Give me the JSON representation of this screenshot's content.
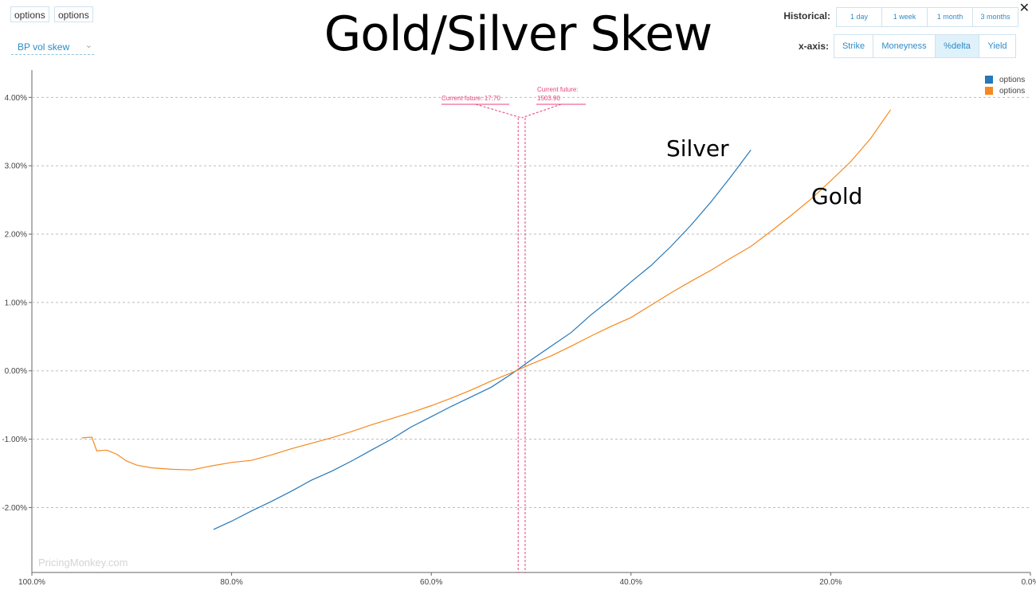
{
  "toolbar": {
    "tab1_label": "options",
    "tab2_label": "options",
    "dropdown_label": "BP vol skew"
  },
  "title": "Gold/Silver Skew",
  "historical": {
    "label": "Historical:",
    "options": [
      "1 day",
      "1 week",
      "1 month",
      "3 months"
    ]
  },
  "xaxis_selector": {
    "label": "x-axis:",
    "options": [
      "Strike",
      "Moneyness",
      "%delta",
      "Yield"
    ],
    "selected": "%delta"
  },
  "legend": [
    {
      "name": "options",
      "color": "#2678b8"
    },
    {
      "name": "options",
      "color": "#f5891f"
    }
  ],
  "annotations": {
    "silver_future": "Current future: 17.70",
    "gold_future_line1": "Current future:",
    "gold_future_line2": "1503.90",
    "silver_label": "Silver",
    "gold_label": "Gold"
  },
  "watermark": "PricingMonkey.com",
  "chart_data": {
    "type": "line",
    "x_unit": "%delta",
    "xlim": [
      100,
      0
    ],
    "ylim": [
      -2.95,
      4.4
    ],
    "xticks": [
      "100.0%",
      "80.0%",
      "60.0%",
      "40.0%",
      "20.0%",
      "0.0%"
    ],
    "xtick_values": [
      100,
      80,
      60,
      40,
      20,
      0
    ],
    "yticks": [
      "4.00%",
      "3.00%",
      "2.00%",
      "1.00%",
      "0.00%",
      "-1.00%",
      "-2.00%"
    ],
    "ytick_values": [
      4,
      3,
      2,
      1,
      0,
      -1,
      -2
    ],
    "grid": "horizontal dashed",
    "legend_position": "top-right",
    "current_future_x": [
      51.3,
      50.6
    ],
    "series": [
      {
        "color": "#2678b8",
        "label": "Silver",
        "x": [
          81.8,
          80.0,
          78.0,
          76.0,
          74.0,
          72.0,
          70.0,
          68.0,
          66.0,
          64.0,
          62.0,
          60.0,
          58.0,
          56.0,
          54.0,
          52.0,
          50.0,
          48.0,
          46.0,
          44.0,
          42.0,
          40.0,
          38.0,
          36.0,
          34.0,
          32.0,
          30.0,
          28.0
        ],
        "y": [
          -2.32,
          -2.2,
          -2.05,
          -1.91,
          -1.76,
          -1.6,
          -1.47,
          -1.32,
          -1.16,
          -1.0,
          -0.82,
          -0.67,
          -0.52,
          -0.38,
          -0.24,
          -0.05,
          0.16,
          0.36,
          0.56,
          0.82,
          1.05,
          1.3,
          1.54,
          1.82,
          2.13,
          2.47,
          2.84,
          3.23
        ]
      },
      {
        "color": "#f5891f",
        "label": "Gold",
        "x": [
          95.0,
          94.0,
          93.5,
          92.5,
          91.5,
          90.5,
          89.5,
          88.0,
          86.0,
          84.0,
          82.0,
          80.0,
          78.0,
          76.0,
          74.0,
          72.0,
          70.0,
          68.0,
          66.0,
          64.0,
          62.0,
          60.0,
          58.0,
          56.0,
          54.0,
          52.0,
          50.0,
          48.0,
          46.0,
          44.0,
          42.0,
          40.0,
          38.0,
          36.0,
          34.0,
          32.0,
          30.0,
          28.0,
          26.0,
          24.0,
          22.0,
          20.0,
          18.0,
          16.0,
          14.0
        ],
        "y": [
          -0.98,
          -0.97,
          -1.17,
          -1.16,
          -1.22,
          -1.32,
          -1.38,
          -1.42,
          -1.44,
          -1.45,
          -1.39,
          -1.34,
          -1.31,
          -1.23,
          -1.14,
          -1.06,
          -0.98,
          -0.89,
          -0.79,
          -0.7,
          -0.61,
          -0.51,
          -0.4,
          -0.28,
          -0.15,
          -0.03,
          0.1,
          0.22,
          0.36,
          0.51,
          0.65,
          0.78,
          0.96,
          1.14,
          1.31,
          1.47,
          1.65,
          1.82,
          2.04,
          2.27,
          2.51,
          2.78,
          3.06,
          3.4,
          3.82
        ]
      }
    ]
  }
}
